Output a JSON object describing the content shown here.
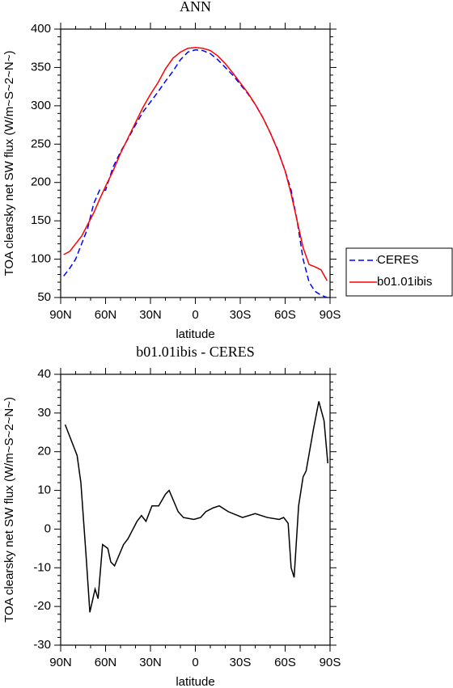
{
  "chart_data": [
    {
      "type": "line",
      "title": "ANN",
      "x_label": "latitude",
      "y_label": "TOA clearsky net SW flux (W/m~S~2~N~)",
      "x": [
        88,
        84,
        80,
        76,
        72,
        68,
        64,
        60,
        55,
        50,
        45,
        40,
        35,
        30,
        25,
        20,
        15,
        10,
        5,
        0,
        -5,
        -10,
        -15,
        -20,
        -25,
        -30,
        -35,
        -40,
        -45,
        -50,
        -55,
        -60,
        -64,
        -68,
        -72,
        -76,
        -80,
        -84,
        -88
      ],
      "series": [
        {
          "name": "CERES",
          "color": "#0000ff",
          "dashed": true,
          "values": [
            78,
            88,
            100,
            120,
            140,
            172,
            190,
            190,
            220,
            240,
            257,
            275,
            292,
            305,
            318,
            332,
            345,
            360,
            370,
            373,
            372,
            368,
            360,
            350,
            340,
            328,
            316,
            302,
            285,
            265,
            243,
            215,
            190,
            150,
            100,
            70,
            58,
            53,
            50
          ]
        },
        {
          "name": "b01.01ibis",
          "color": "#ff0000",
          "dashed": false,
          "values": [
            106,
            110,
            120,
            130,
            145,
            160,
            178,
            195,
            215,
            238,
            258,
            278,
            298,
            315,
            330,
            348,
            362,
            370,
            375,
            376,
            375,
            372,
            365,
            355,
            343,
            330,
            317,
            302,
            285,
            265,
            242,
            215,
            185,
            150,
            115,
            93,
            90,
            86,
            72
          ]
        }
      ],
      "xlim": [
        90,
        -90
      ],
      "xticks": [
        {
          "value": 90,
          "label": "90N"
        },
        {
          "value": 60,
          "label": "60N"
        },
        {
          "value": 30,
          "label": "30N"
        },
        0,
        {
          "value": -30,
          "label": "30S"
        },
        {
          "value": -60,
          "label": "60S"
        },
        {
          "value": -90,
          "label": "90S"
        }
      ],
      "ylim": [
        50,
        400
      ],
      "yticks": [
        50,
        100,
        150,
        200,
        250,
        300,
        350,
        400
      ],
      "legend": "right"
    },
    {
      "type": "line",
      "title": "b01.01ibis - CERES",
      "x_label": "latitude",
      "y_label": "TOA clearsky net SW flux (W/m~S~2~N~)",
      "x": [
        87,
        79,
        76.5,
        73,
        70.5,
        67,
        65,
        62,
        58.5,
        56.5,
        54,
        48,
        45,
        39,
        36,
        33,
        29,
        24.5,
        20,
        17.5,
        11.5,
        8,
        1,
        -3.5,
        -7,
        -12,
        -16,
        -22,
        -31.5,
        -40,
        -48,
        -56,
        -59,
        -62,
        -64,
        -66,
        -69,
        -72,
        -74,
        -79,
        -82.5,
        -86,
        -88.5
      ],
      "values": [
        27,
        19,
        12,
        -7,
        -21.5,
        -15.5,
        -18,
        -4,
        -5,
        -8.5,
        -9.5,
        -4,
        -2.5,
        2,
        3.5,
        2,
        6,
        6,
        9,
        10,
        4.5,
        3,
        2.5,
        3,
        4.5,
        5.5,
        6,
        4.5,
        3,
        4,
        3,
        2.5,
        3,
        1.5,
        -10,
        -12.5,
        6,
        13.5,
        15,
        26,
        33,
        28,
        17
      ],
      "color": "#000000",
      "xlim": [
        90,
        -90
      ],
      "xticks": [
        {
          "value": 90,
          "label": "90N"
        },
        {
          "value": 60,
          "label": "60N"
        },
        {
          "value": 30,
          "label": "30N"
        },
        0,
        {
          "value": -30,
          "label": "30S"
        },
        {
          "value": -60,
          "label": "60S"
        },
        {
          "value": -90,
          "label": "90S"
        }
      ],
      "ylim": [
        -30,
        40
      ],
      "yticks": [
        -30,
        -20,
        -10,
        0,
        10,
        20,
        30,
        40
      ]
    }
  ]
}
